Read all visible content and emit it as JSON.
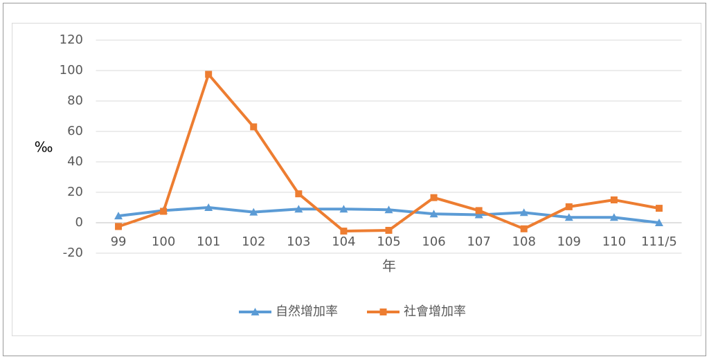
{
  "chart_data": {
    "type": "line",
    "x_label": "年",
    "y_label": "‰",
    "categories": [
      "99",
      "100",
      "101",
      "102",
      "103",
      "104",
      "105",
      "106",
      "107",
      "108",
      "109",
      "110",
      "111/5"
    ],
    "series": [
      {
        "name": "自然增加率",
        "color": "#5b9bd5",
        "marker": "triangle",
        "values": [
          4.5,
          8,
          10,
          7,
          9,
          9,
          8.5,
          5.8,
          5.2,
          6.7,
          3.5,
          3.5,
          0
        ]
      },
      {
        "name": "社會增加率",
        "color": "#ed7d31",
        "marker": "square",
        "values": [
          -2.5,
          7.5,
          97.5,
          63,
          19,
          -5.5,
          -5,
          16.5,
          8,
          -4,
          10.5,
          15,
          9.5
        ]
      }
    ],
    "ylim": [
      -20,
      120
    ],
    "yticks": [
      -20,
      0,
      20,
      40,
      60,
      80,
      100,
      120
    ],
    "grid": true,
    "legend": "bottom"
  }
}
